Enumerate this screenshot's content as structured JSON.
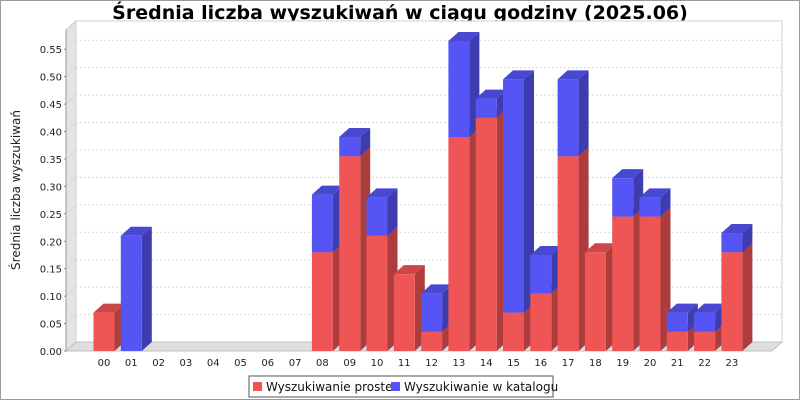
{
  "chart_data": {
    "type": "bar",
    "stacked": true,
    "three_d": true,
    "title": "Średnia liczba wyszukiwań w ciągu godziny (2025.06)",
    "xlabel": "",
    "ylabel": "Średnia liczba wyszukiwań",
    "categories": [
      "00",
      "01",
      "02",
      "03",
      "04",
      "05",
      "06",
      "07",
      "08",
      "09",
      "10",
      "11",
      "12",
      "13",
      "14",
      "15",
      "16",
      "17",
      "18",
      "19",
      "20",
      "21",
      "22",
      "23"
    ],
    "series": [
      {
        "name": "Wyszukiwanie proste",
        "color": "#f05555",
        "values": [
          0.07,
          0,
          0,
          0,
          0,
          0,
          0,
          0,
          0.18,
          0.355,
          0.21,
          0.14,
          0.035,
          0.39,
          0.425,
          0.07,
          0.105,
          0.355,
          0.18,
          0.245,
          0.245,
          0.035,
          0.035,
          0.18
        ]
      },
      {
        "name": "Wyszukiwanie w katalogu",
        "color": "#5555f5",
        "values": [
          0,
          0.21,
          0,
          0,
          0,
          0,
          0,
          0,
          0.105,
          0.035,
          0.07,
          0,
          0.07,
          0.175,
          0.035,
          0.425,
          0.07,
          0.14,
          0,
          0.07,
          0.035,
          0.035,
          0.035,
          0.035
        ]
      }
    ],
    "ylim": [
      0,
      0.585
    ],
    "yticks": [
      "0.00",
      "0.05",
      "0.10",
      "0.15",
      "0.20",
      "0.25",
      "0.30",
      "0.35",
      "0.40",
      "0.45",
      "0.50",
      "0.55"
    ],
    "grid": true,
    "legend_position": "bottom"
  }
}
